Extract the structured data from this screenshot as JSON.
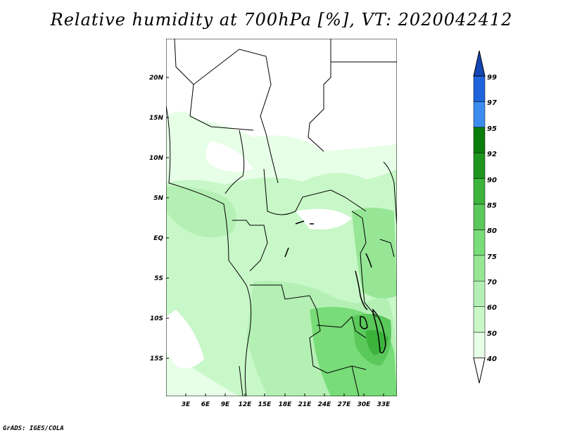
{
  "title": "Relative humidity at 700hPa [%], VT: 2020042412",
  "map": {
    "lat_labels": [
      "20N",
      "15N",
      "10N",
      "5N",
      "EQ",
      "5S",
      "10S",
      "15S"
    ],
    "lon_labels": [
      "3E",
      "6E",
      "9E",
      "12E",
      "15E",
      "18E",
      "21E",
      "24E",
      "27E",
      "30E",
      "33E"
    ]
  },
  "colorbar": {
    "levels": [
      "40",
      "50",
      "60",
      "70",
      "75",
      "80",
      "85",
      "90",
      "92",
      "95",
      "97",
      "99"
    ],
    "colors": [
      "#ffffff",
      "#e6ffe6",
      "#c8f7c8",
      "#b4f0b4",
      "#96e696",
      "#78dc78",
      "#5ac85a",
      "#3cb43c",
      "#1e961e",
      "#0a7d0a",
      "#3c8cf0",
      "#1e64dc",
      "#1446b4"
    ]
  },
  "credit": "GrADS: IGES/COLA"
}
